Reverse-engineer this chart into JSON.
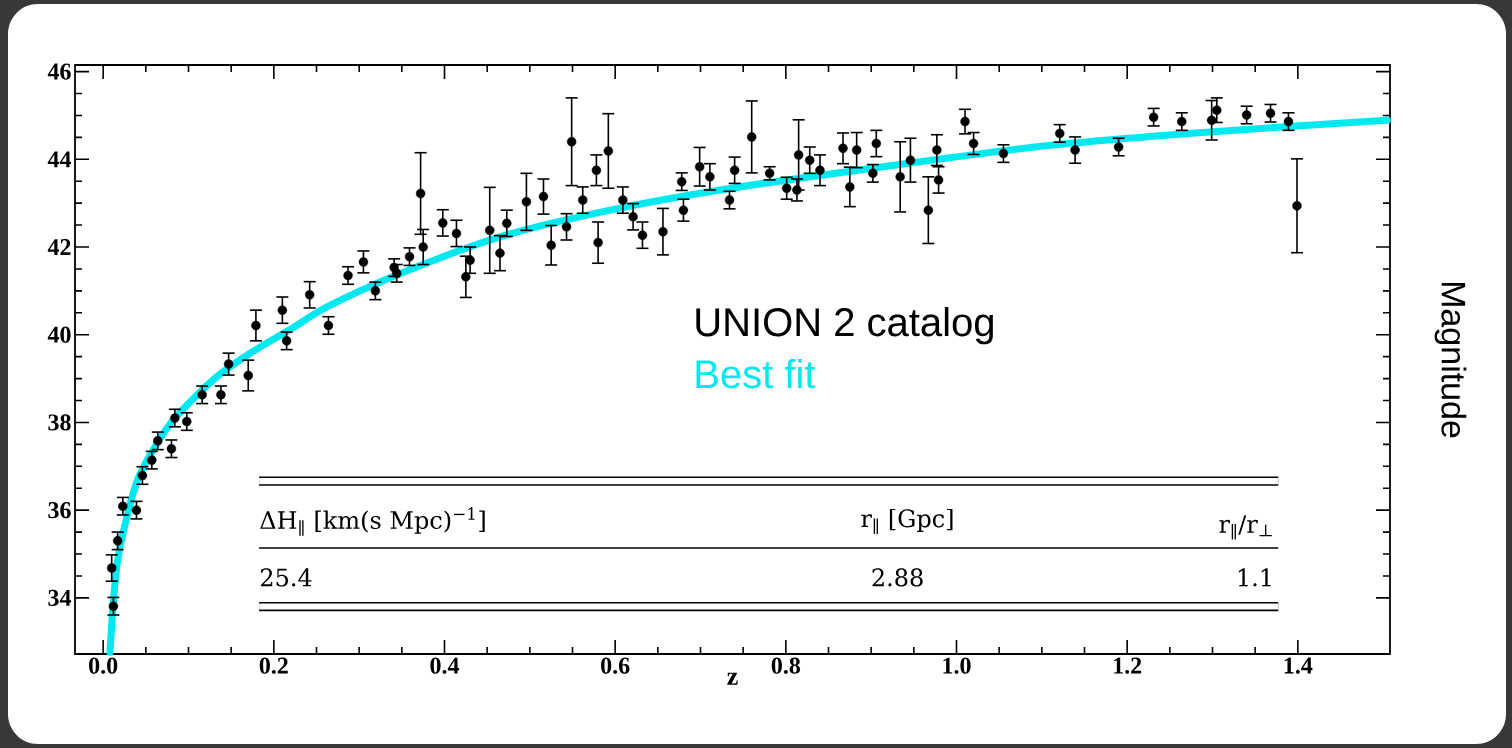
{
  "chart_data": {
    "type": "scatter",
    "xlabel": "z",
    "ylabel": "Magnitude",
    "xlim": [
      -0.033,
      1.508
    ],
    "ylim": [
      32.72,
      46.15
    ],
    "xticks": [
      {
        "value": 0,
        "label": "0.0"
      },
      {
        "value": 0.2,
        "label": "0.2"
      },
      {
        "value": 0.4,
        "label": "0.4"
      },
      {
        "value": 0.6,
        "label": "0.6"
      },
      {
        "value": 0.8,
        "label": "0.8"
      },
      {
        "value": 1.0,
        "label": "1.0"
      },
      {
        "value": 1.2,
        "label": "1.2"
      },
      {
        "value": 1.4,
        "label": "1.4"
      }
    ],
    "yticks": [
      34,
      36,
      38,
      40,
      42,
      44,
      46
    ],
    "legend": "center",
    "grid": false,
    "marker": "circle",
    "annotations": [
      "ΔH$_{∥}$ [km(s Mpc)$^{−1}$]",
      "r$_{∥}$ [Gpc]",
      "r$_{∥}$/r$_{⊥}$",
      "25.4",
      "2.88",
      "1.1"
    ],
    "series": [
      {
        "name": "UNION 2 catalog",
        "color": "#000000",
        "x": [
          0.012,
          0.01,
          0.017,
          0.023,
          0.039,
          0.046,
          0.057,
          0.064,
          0.08,
          0.084,
          0.098,
          0.116,
          0.138,
          0.147,
          0.17,
          0.179,
          0.21,
          0.215,
          0.242,
          0.264,
          0.287,
          0.305,
          0.319,
          0.341,
          0.344,
          0.359,
          0.372,
          0.375,
          0.398,
          0.414,
          0.425,
          0.43,
          0.453,
          0.465,
          0.473,
          0.496,
          0.516,
          0.525,
          0.543,
          0.549,
          0.562,
          0.578,
          0.58,
          0.592,
          0.609,
          0.621,
          0.632,
          0.656,
          0.678,
          0.68,
          0.699,
          0.711,
          0.734,
          0.74,
          0.76,
          0.781,
          0.801,
          0.813,
          0.815,
          0.828,
          0.84,
          0.867,
          0.875,
          0.883,
          0.902,
          0.906,
          0.934,
          0.946,
          0.967,
          0.977,
          0.979,
          1.01,
          1.02,
          1.055,
          1.121,
          1.139,
          1.19,
          1.231,
          1.264,
          1.299,
          1.305,
          1.34,
          1.368,
          1.389,
          1.399
        ],
        "values": [
          33.81,
          34.68,
          35.3,
          36.09,
          36.0,
          36.79,
          37.14,
          37.58,
          37.4,
          38.1,
          38.02,
          38.63,
          38.63,
          39.33,
          39.07,
          40.21,
          40.56,
          39.86,
          40.91,
          40.21,
          41.35,
          41.66,
          41.0,
          41.53,
          41.4,
          41.78,
          43.22,
          42.0,
          42.55,
          42.31,
          41.32,
          41.7,
          42.38,
          41.86,
          42.54,
          43.03,
          43.15,
          42.04,
          42.46,
          44.4,
          43.07,
          43.75,
          42.1,
          44.19,
          43.07,
          42.69,
          42.27,
          42.35,
          43.49,
          42.84,
          43.83,
          43.6,
          43.07,
          43.75,
          44.51,
          43.68,
          43.34,
          43.3,
          44.1,
          43.98,
          43.75,
          44.25,
          43.37,
          44.21,
          43.68,
          44.36,
          43.6,
          43.98,
          42.84,
          44.21,
          43.53,
          44.86,
          44.36,
          44.13,
          44.59,
          44.21,
          44.28,
          44.96,
          44.86,
          44.89,
          45.12,
          45.01,
          45.05,
          44.86,
          42.94
        ],
        "errors": [
          0.2,
          0.3,
          0.2,
          0.2,
          0.2,
          0.2,
          0.2,
          0.2,
          0.2,
          0.2,
          0.2,
          0.2,
          0.2,
          0.25,
          0.35,
          0.35,
          0.3,
          0.2,
          0.3,
          0.2,
          0.2,
          0.25,
          0.2,
          0.2,
          0.2,
          0.2,
          0.93,
          0.4,
          0.3,
          0.3,
          0.47,
          0.3,
          0.98,
          0.4,
          0.3,
          0.65,
          0.4,
          0.45,
          0.3,
          1.0,
          0.3,
          0.35,
          0.47,
          0.85,
          0.3,
          0.3,
          0.3,
          0.53,
          0.2,
          0.25,
          0.44,
          0.3,
          0.2,
          0.3,
          0.82,
          0.15,
          0.25,
          0.25,
          0.8,
          0.3,
          0.35,
          0.35,
          0.45,
          0.4,
          0.2,
          0.3,
          0.8,
          0.5,
          0.76,
          0.35,
          0.3,
          0.28,
          0.25,
          0.2,
          0.2,
          0.3,
          0.2,
          0.2,
          0.2,
          0.45,
          0.28,
          0.2,
          0.2,
          0.2,
          1.07
        ]
      },
      {
        "name": "Best fit",
        "type": "line",
        "marker": "none",
        "color": "#00e8f0",
        "x": [
          0.008,
          0.017,
          0.039,
          0.062,
          0.084,
          0.13,
          0.174,
          0.22,
          0.264,
          0.349,
          0.465,
          0.594,
          0.723,
          0.91,
          1.11,
          1.301,
          1.505
        ],
        "values": [
          32.76,
          34.86,
          36.62,
          37.48,
          38.1,
          38.99,
          39.6,
          40.13,
          40.65,
          41.4,
          42.23,
          42.84,
          43.3,
          43.82,
          44.32,
          44.63,
          44.89
        ]
      }
    ]
  }
}
